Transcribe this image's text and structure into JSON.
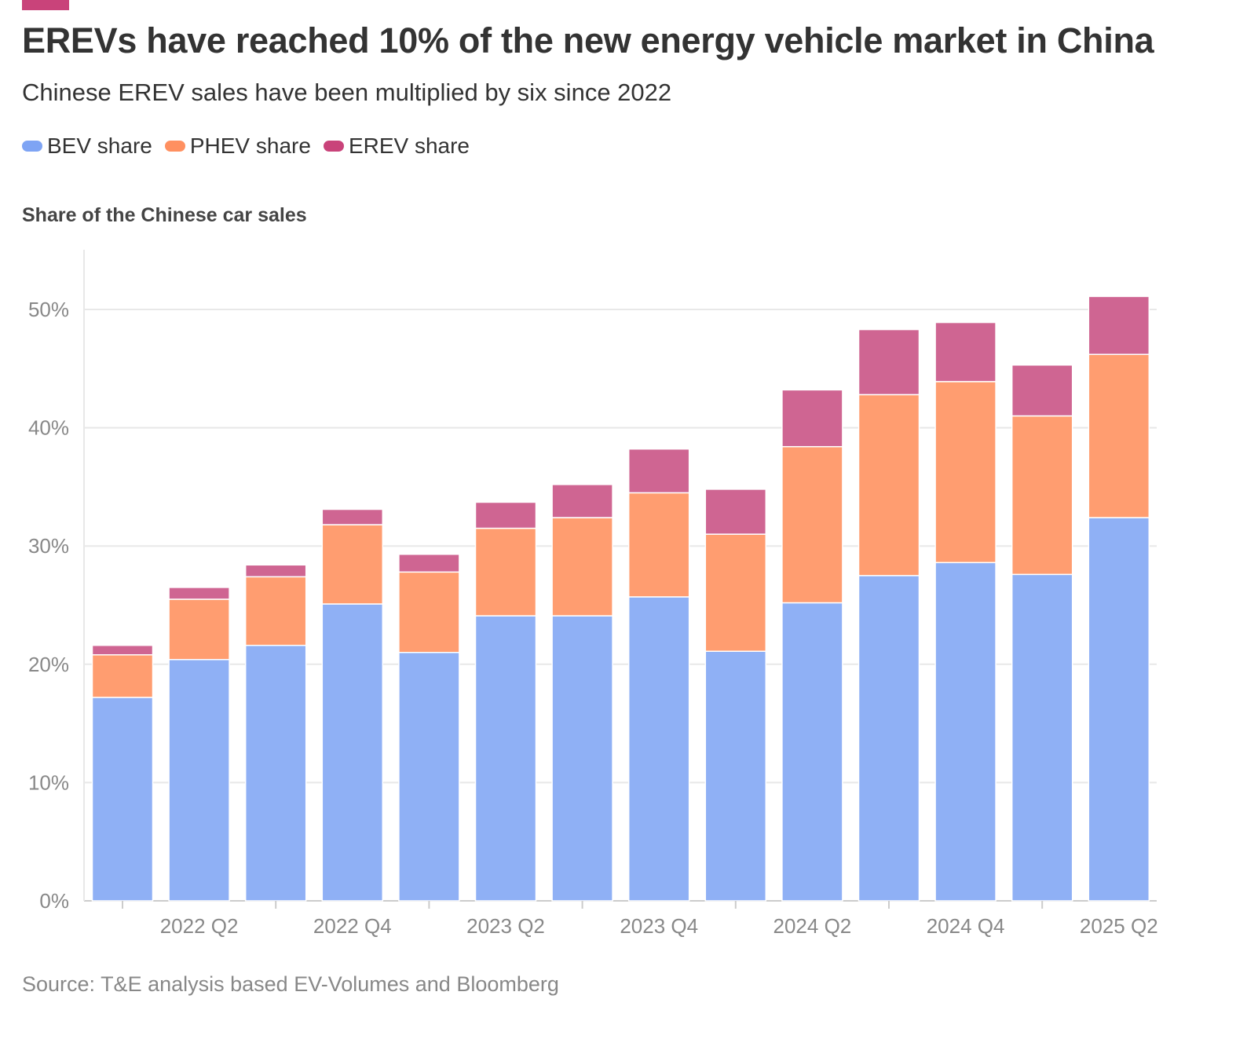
{
  "title": "EREVs have reached 10% of the new energy vehicle market in China",
  "subtitle": "Chinese EREV sales have been multiplied by six since 2022",
  "source": "Source: T&E analysis based EV-Volumes and Bloomberg",
  "colors": {
    "accent": "#c9437a",
    "BEV": "#8fb0f5",
    "PHEV": "#ff9d70",
    "EREV": "#cf6592"
  },
  "chart_data": {
    "type": "bar",
    "stacked": true,
    "title": "EREVs have reached 10% of the new energy vehicle market in China",
    "ylabel": "Share of the Chinese car sales",
    "xlabel": "",
    "ylim": [
      0,
      55
    ],
    "yticks": [
      0,
      10,
      20,
      30,
      40,
      50
    ],
    "ytick_labels": [
      "0%",
      "10%",
      "20%",
      "30%",
      "40%",
      "50%"
    ],
    "grid": true,
    "legend": "top-left",
    "categories": [
      "2022 Q1",
      "2022 Q2",
      "2022 Q3",
      "2022 Q4",
      "2023 Q1",
      "2023 Q2",
      "2023 Q3",
      "2023 Q4",
      "2024 Q1",
      "2024 Q2",
      "2024 Q3",
      "2024 Q4",
      "2025 Q1",
      "2025 Q2"
    ],
    "xtick_labels": [
      "2022 Q2",
      "2022 Q4",
      "2023 Q2",
      "2023 Q4",
      "2024 Q2",
      "2024 Q4",
      "2025 Q2"
    ],
    "series": [
      {
        "name": "BEV share",
        "values": [
          17.2,
          20.4,
          21.6,
          25.1,
          21.0,
          24.1,
          24.1,
          25.7,
          21.1,
          25.2,
          27.5,
          28.6,
          27.6,
          32.4
        ]
      },
      {
        "name": "PHEV share",
        "values": [
          3.6,
          5.1,
          5.8,
          6.7,
          6.8,
          7.4,
          8.3,
          8.8,
          9.9,
          13.2,
          15.3,
          15.3,
          13.4,
          13.8
        ]
      },
      {
        "name": "EREV share",
        "values": [
          0.8,
          1.0,
          1.0,
          1.3,
          1.5,
          2.2,
          2.8,
          3.7,
          3.8,
          4.8,
          5.5,
          5.0,
          4.3,
          4.9
        ]
      }
    ]
  }
}
